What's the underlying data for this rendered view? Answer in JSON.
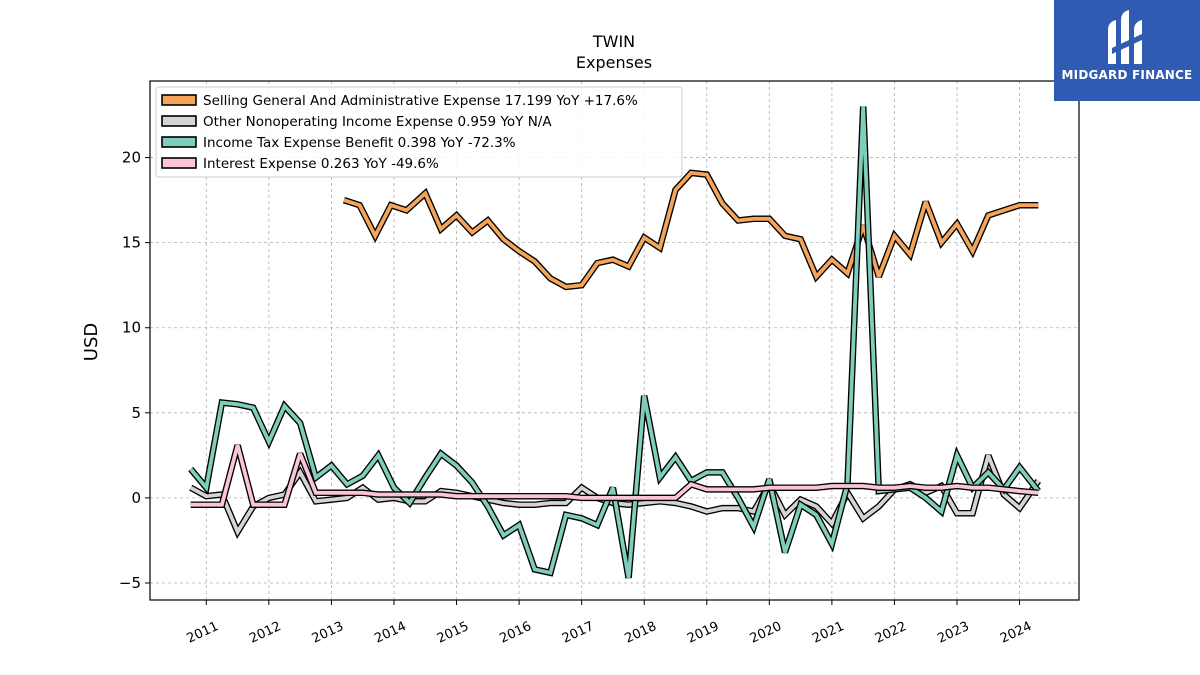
{
  "brand": {
    "name": "MIDGARD FINANCE",
    "color": "#2f5bb3"
  },
  "chart_data": {
    "type": "line",
    "title": "TWIN",
    "subtitle": "Expenses",
    "xlabel": "",
    "ylabel": "USD",
    "ylim": [
      -6,
      24.5
    ],
    "xlim": [
      2010.1,
      2024.95
    ],
    "yticks": [
      -5,
      0,
      5,
      10,
      15,
      20
    ],
    "ytick_labels": [
      "−5",
      "0",
      "5",
      "10",
      "15",
      "20"
    ],
    "xticks": [
      2011,
      2012,
      2013,
      2014,
      2015,
      2016,
      2017,
      2018,
      2019,
      2020,
      2021,
      2022,
      2023,
      2024
    ],
    "xtick_labels": [
      "2011",
      "2012",
      "2013",
      "2014",
      "2015",
      "2016",
      "2017",
      "2018",
      "2019",
      "2020",
      "2021",
      "2022",
      "2023",
      "2024"
    ],
    "grid": true,
    "legend_position": "top-left",
    "series": [
      {
        "name": "Selling General And Administrative Expense  17.199 YoY +17.6%",
        "color": "#f5a55a",
        "x": [
          2013.2,
          2013.45,
          2013.7,
          2013.95,
          2014.2,
          2014.5,
          2014.75,
          2015.0,
          2015.25,
          2015.5,
          2015.75,
          2016.0,
          2016.25,
          2016.5,
          2016.75,
          2017.0,
          2017.25,
          2017.5,
          2017.75,
          2018.0,
          2018.25,
          2018.5,
          2018.75,
          2019.0,
          2019.25,
          2019.5,
          2019.75,
          2020.0,
          2020.25,
          2020.5,
          2020.75,
          2021.0,
          2021.25,
          2021.5,
          2021.75,
          2022.0,
          2022.25,
          2022.5,
          2022.75,
          2023.0,
          2023.25,
          2023.5,
          2023.75,
          2024.0,
          2024.3
        ],
        "y": [
          17.5,
          17.2,
          15.4,
          17.2,
          16.9,
          17.9,
          15.8,
          16.6,
          15.6,
          16.3,
          15.2,
          14.5,
          13.9,
          12.9,
          12.4,
          12.5,
          13.8,
          14.0,
          13.6,
          15.3,
          14.7,
          18.1,
          19.1,
          19.0,
          17.3,
          16.3,
          16.4,
          16.4,
          15.4,
          15.2,
          13.0,
          14.0,
          13.2,
          16.0,
          13.0,
          15.4,
          14.3,
          17.4,
          15.0,
          16.1,
          14.5,
          16.6,
          16.9,
          17.2,
          17.2
        ]
      },
      {
        "name": "Other Nonoperating Income Expense  0.959 YoY N/A",
        "color": "#d4d4d4",
        "x": [
          2010.75,
          2011.0,
          2011.25,
          2011.5,
          2011.75,
          2012.0,
          2012.25,
          2012.5,
          2012.75,
          2013.0,
          2013.25,
          2013.5,
          2013.75,
          2014.0,
          2014.25,
          2014.5,
          2014.75,
          2015.0,
          2015.25,
          2015.5,
          2015.75,
          2016.0,
          2016.25,
          2016.5,
          2016.75,
          2017.0,
          2017.25,
          2017.5,
          2017.75,
          2018.0,
          2018.25,
          2018.5,
          2018.75,
          2019.0,
          2019.25,
          2019.5,
          2019.75,
          2020.0,
          2020.25,
          2020.5,
          2020.75,
          2021.0,
          2021.25,
          2021.5,
          2021.75,
          2022.0,
          2022.25,
          2022.5,
          2022.75,
          2023.0,
          2023.25,
          2023.5,
          2023.75,
          2024.0,
          2024.3
        ],
        "y": [
          0.6,
          0.1,
          0.2,
          -2.0,
          -0.5,
          0.0,
          0.2,
          1.5,
          -0.2,
          -0.1,
          0.0,
          0.6,
          -0.1,
          0.0,
          -0.2,
          -0.2,
          0.4,
          0.3,
          0.1,
          -0.1,
          -0.3,
          -0.4,
          -0.4,
          -0.3,
          -0.3,
          0.6,
          0.0,
          -0.3,
          -0.4,
          -0.3,
          -0.2,
          -0.3,
          -0.5,
          -0.8,
          -0.6,
          -0.6,
          -0.8,
          0.8,
          -1.0,
          -0.1,
          -0.5,
          -1.5,
          0.3,
          -1.2,
          -0.5,
          0.5,
          0.8,
          0.3,
          0.7,
          -0.9,
          -0.9,
          2.5,
          0.2,
          -0.6,
          1.0
        ]
      },
      {
        "name": "Income Tax Expense Benefit  0.398 YoY -72.3%",
        "color": "#7fcdbb",
        "x": [
          2010.75,
          2011.0,
          2011.25,
          2011.5,
          2011.75,
          2012.0,
          2012.25,
          2012.5,
          2012.75,
          2013.0,
          2013.25,
          2013.5,
          2013.75,
          2014.0,
          2014.25,
          2014.5,
          2014.75,
          2015.0,
          2015.25,
          2015.5,
          2015.75,
          2016.0,
          2016.25,
          2016.5,
          2016.75,
          2017.0,
          2017.25,
          2017.5,
          2017.75,
          2018.0,
          2018.25,
          2018.5,
          2018.75,
          2019.0,
          2019.25,
          2019.5,
          2019.75,
          2020.0,
          2020.25,
          2020.5,
          2020.75,
          2021.0,
          2021.25,
          2021.5,
          2021.75,
          2022.0,
          2022.25,
          2022.5,
          2022.75,
          2023.0,
          2023.25,
          2023.5,
          2023.75,
          2024.0,
          2024.3
        ],
        "y": [
          1.7,
          0.6,
          5.6,
          5.5,
          5.3,
          3.3,
          5.4,
          4.4,
          1.2,
          1.9,
          0.8,
          1.3,
          2.5,
          0.6,
          -0.3,
          1.2,
          2.6,
          1.9,
          0.9,
          -0.5,
          -2.2,
          -1.6,
          -4.2,
          -4.4,
          -1.0,
          -1.2,
          -1.6,
          0.6,
          -4.7,
          6.0,
          1.2,
          2.4,
          1.0,
          1.5,
          1.5,
          0.0,
          -1.7,
          1.1,
          -3.2,
          -0.4,
          -1.0,
          -2.7,
          0.8,
          23.0,
          0.4,
          0.5,
          0.6,
          0.0,
          -0.8,
          2.5,
          0.6,
          1.5,
          0.5,
          1.8,
          0.4
        ]
      },
      {
        "name": "Interest Expense  0.263 YoY -49.6%",
        "color": "#fbc4d8",
        "x": [
          2010.75,
          2011.0,
          2011.25,
          2011.5,
          2011.75,
          2012.0,
          2012.25,
          2012.5,
          2012.75,
          2013.0,
          2013.25,
          2013.5,
          2013.75,
          2014.0,
          2014.25,
          2014.5,
          2014.75,
          2015.0,
          2015.25,
          2015.5,
          2015.75,
          2016.0,
          2016.25,
          2016.5,
          2016.75,
          2017.0,
          2017.25,
          2017.5,
          2017.75,
          2018.0,
          2018.25,
          2018.5,
          2018.75,
          2019.0,
          2019.25,
          2019.5,
          2019.75,
          2020.0,
          2020.25,
          2020.5,
          2020.75,
          2021.0,
          2021.25,
          2021.5,
          2021.75,
          2022.0,
          2022.25,
          2022.5,
          2022.75,
          2023.0,
          2023.25,
          2023.5,
          2023.75,
          2024.0,
          2024.3
        ],
        "y": [
          -0.4,
          -0.4,
          -0.4,
          3.1,
          -0.4,
          -0.4,
          -0.4,
          2.6,
          0.3,
          0.3,
          0.3,
          0.3,
          0.2,
          0.2,
          0.2,
          0.2,
          0.2,
          0.1,
          0.1,
          0.1,
          0.1,
          0.1,
          0.1,
          0.1,
          0.1,
          0.0,
          0.0,
          0.0,
          0.0,
          0.0,
          0.0,
          0.0,
          0.8,
          0.5,
          0.5,
          0.5,
          0.5,
          0.6,
          0.6,
          0.6,
          0.6,
          0.7,
          0.7,
          0.7,
          0.6,
          0.6,
          0.7,
          0.6,
          0.6,
          0.7,
          0.6,
          0.6,
          0.5,
          0.4,
          0.3
        ]
      }
    ]
  }
}
